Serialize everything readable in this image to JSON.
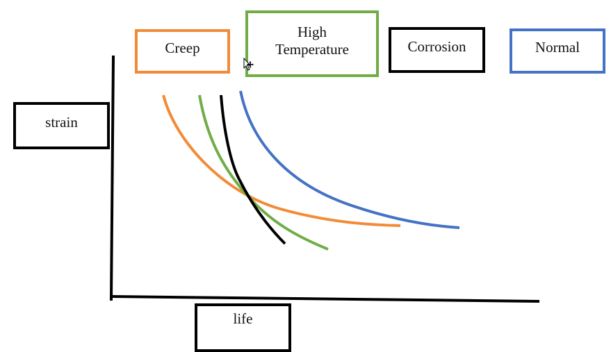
{
  "diagram": {
    "y_axis_label": "strain",
    "x_axis_label": "life",
    "legend": [
      {
        "label": "Creep",
        "color": "#f28b38"
      },
      {
        "label": "High\nTemperature",
        "color": "#70ad47"
      },
      {
        "label": "Corrosion",
        "color": "#000000"
      },
      {
        "label": "Normal",
        "color": "#4472c4"
      }
    ],
    "icon": "move-cursor-icon"
  }
}
